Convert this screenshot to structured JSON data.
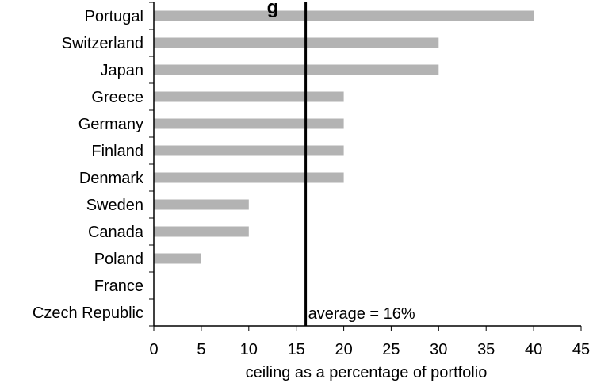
{
  "chart_data": {
    "type": "bar",
    "orientation": "horizontal",
    "title_fragment": "g",
    "categories": [
      "Portugal",
      "Switzerland",
      "Japan",
      "Greece",
      "Germany",
      "Finland",
      "Denmark",
      "Sweden",
      "Canada",
      "Poland",
      "France",
      "Czech Republic"
    ],
    "values": [
      40,
      30,
      30,
      20,
      20,
      20,
      20,
      10,
      10,
      5,
      0,
      0
    ],
    "bar_color": "#b3b3b3",
    "xlabel": "ceiling as a percentage of portfolio",
    "xlim": [
      0,
      45
    ],
    "xticks": [
      0,
      5,
      10,
      15,
      20,
      25,
      30,
      35,
      40,
      45
    ],
    "average": {
      "value": 16,
      "label": "average = 16%"
    },
    "grid": false,
    "legend": "none"
  }
}
